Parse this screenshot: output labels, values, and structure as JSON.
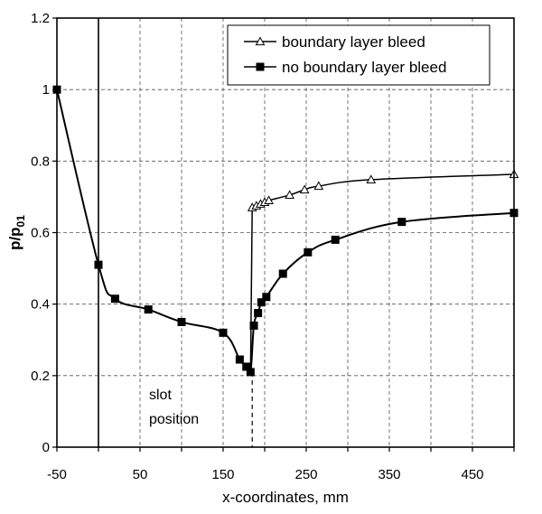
{
  "chart_data": {
    "type": "line",
    "xlabel": "x-coordinates, mm",
    "ylabel": "p/p",
    "ylabel_sub": "01",
    "xlim": [
      -50,
      500
    ],
    "ylim": [
      0,
      1.2
    ],
    "xticks": [
      -50,
      50,
      150,
      250,
      350,
      450
    ],
    "xticks_minor": [
      0,
      100,
      200,
      300,
      400,
      500
    ],
    "xtick_labels": [
      "-50",
      "50",
      "150",
      "250",
      "350",
      "450"
    ],
    "yticks": [
      0,
      0.2,
      0.4,
      0.6,
      0.8,
      1,
      1.2
    ],
    "ytick_labels": [
      "0",
      "0.2",
      "0.4",
      "0.6",
      "0.8",
      "1",
      "1.2"
    ],
    "grid": true,
    "legend_position": "top-right",
    "annotations": [
      {
        "text_lines": [
          "slot",
          "position"
        ],
        "x": 0,
        "y": 0.15
      }
    ],
    "markers": {
      "slot_x": 0,
      "shock_x": 185,
      "shock_y": 0.21
    },
    "series": [
      {
        "name": "boundary layer bleed",
        "marker": "open-triangle",
        "x": [
          185,
          190,
          195,
          200,
          205,
          230,
          248,
          265,
          328,
          500
        ],
        "y": [
          0.67,
          0.675,
          0.68,
          0.685,
          0.69,
          0.705,
          0.72,
          0.73,
          0.748,
          0.763
        ]
      },
      {
        "name": "no boundary layer bleed",
        "marker": "filled-square",
        "x": [
          -50,
          0,
          20,
          60,
          100,
          150,
          170,
          178,
          183,
          187,
          192,
          196,
          202,
          222,
          252,
          285,
          365,
          500
        ],
        "y": [
          1.0,
          0.51,
          0.415,
          0.385,
          0.35,
          0.32,
          0.245,
          0.225,
          0.21,
          0.34,
          0.375,
          0.405,
          0.42,
          0.485,
          0.545,
          0.58,
          0.63,
          0.655
        ]
      }
    ],
    "bleed_curve_origin": {
      "x": 183,
      "y": 0.21
    }
  }
}
